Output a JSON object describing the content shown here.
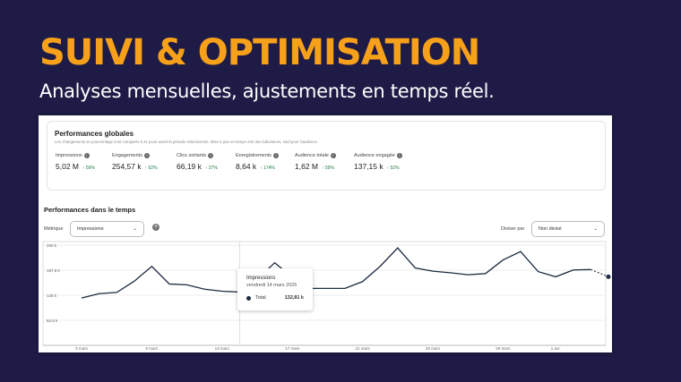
{
  "slide": {
    "title": "SUIVI & OPTIMISATION",
    "subtitle": "Analyses mensuelles, ajustements en temps réel."
  },
  "summary": {
    "title": "Performances globales",
    "description": "Les changements en pourcentage sont comparés à 31 jours avant la période sélectionnée. Mise à jour en temps réel des indicateurs, sauf pour l'audience.",
    "metrics": [
      {
        "label": "Impressions",
        "value": "5,02 M",
        "change": "59%"
      },
      {
        "label": "Engagements",
        "value": "254,57 k",
        "change": "52%"
      },
      {
        "label": "Clics sortants",
        "value": "66,19 k",
        "change": "27%"
      },
      {
        "label": "Enregistrements",
        "value": "8,64 k",
        "change": "174%"
      },
      {
        "label": "Audience totale",
        "value": "1,62 M",
        "change": "59%"
      },
      {
        "label": "Audience engagée",
        "value": "137,15 k",
        "change": "52%"
      }
    ]
  },
  "over_time": {
    "title": "Performances dans le temps",
    "metric_label": "Métrique",
    "metric_value": "Impressions",
    "split_label": "Diviser par",
    "split_value": "Non divisé"
  },
  "tooltip": {
    "title": "Impressions",
    "date": "vendredi 14 mars 2025",
    "series": "Total",
    "value": "132,81 k"
  },
  "colors": {
    "accent": "#f7a01a",
    "background": "#1e1c46",
    "line": "#1c2b3e",
    "positive": "#1d7a44"
  },
  "chart_data": {
    "type": "line",
    "title": "Performances dans le temps",
    "ylabel": "Impressions",
    "ylim": [
      0,
      250
    ],
    "yticks": [
      "250 k",
      "187,5 k",
      "125 k",
      "62,5 k"
    ],
    "ytick_values": [
      250,
      187.5,
      125,
      62.5
    ],
    "xticks": [
      "5 mars",
      "9 mars",
      "13 mars",
      "17 mars",
      "21 mars",
      "25 mars",
      "29 mars",
      "1 avr."
    ],
    "xtick_index": [
      0,
      4,
      8,
      12,
      16,
      20,
      24,
      27
    ],
    "x": [
      "5 mars",
      "6 mars",
      "7 mars",
      "8 mars",
      "9 mars",
      "10 mars",
      "11 mars",
      "12 mars",
      "13 mars",
      "14 mars",
      "15 mars",
      "16 mars",
      "17 mars",
      "18 mars",
      "19 mars",
      "20 mars",
      "21 mars",
      "22 mars",
      "23 mars",
      "24 mars",
      "25 mars",
      "26 mars",
      "27 mars",
      "28 mars",
      "29 mars",
      "30 mars",
      "31 mars",
      "1 avr.",
      "2 avr.",
      "3 avr.",
      "4 avr."
    ],
    "series": [
      {
        "name": "Impressions",
        "values": [
          118,
          129,
          132,
          160,
          197,
          153,
          151,
          140,
          135,
          132.8,
          165,
          206,
          170,
          142,
          142,
          142,
          159,
          197,
          243,
          193,
          185,
          181,
          176,
          179,
          213,
          234,
          184,
          171,
          188,
          189,
          171
        ],
        "dotted_last": true
      }
    ]
  }
}
